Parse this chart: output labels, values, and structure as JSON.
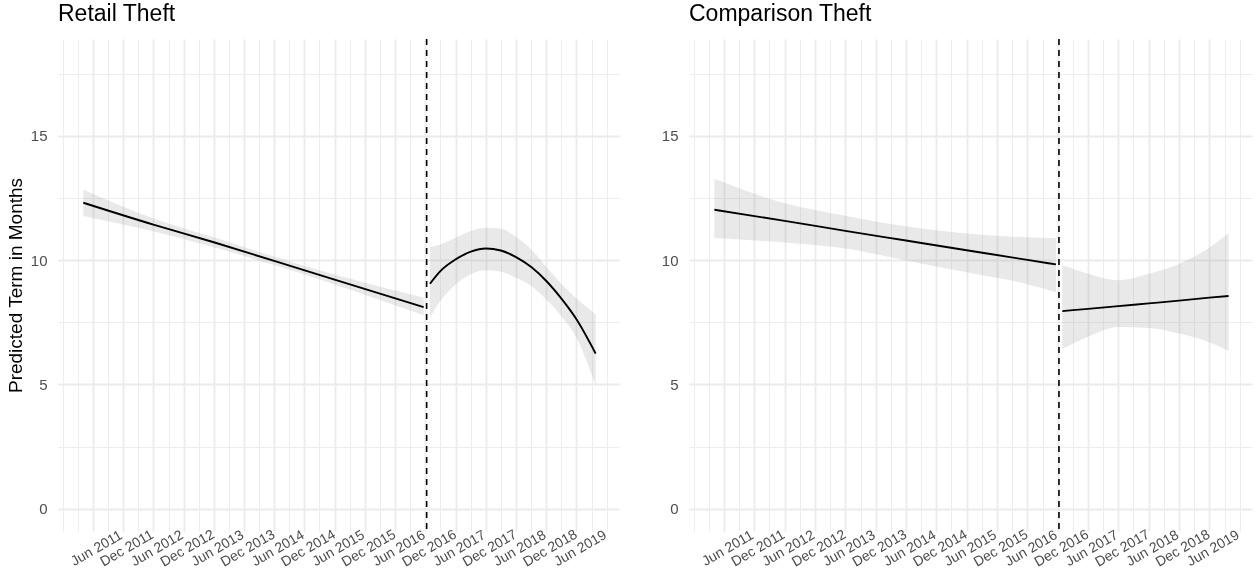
{
  "chart_data": [
    {
      "type": "line",
      "title": "Retail Theft",
      "ylabel": "Predicted Term in Months",
      "series": [
        {
          "color": "#000000",
          "x": [
            "2011-04-05",
            "2012-06-01",
            "2013-06-01",
            "2014-06-01",
            "2015-06-01",
            "2016-11-20"
          ],
          "values": [
            12.31,
            11.43,
            10.72,
            9.97,
            9.22,
            8.11
          ],
          "lower": [
            11.78,
            11.16,
            10.52,
            9.8,
            9.02,
            7.78
          ],
          "upper": [
            12.83,
            11.68,
            10.92,
            10.14,
            9.42,
            8.49
          ]
        },
        {
          "color": "#000000",
          "x": [
            "2016-12-28",
            "2017-03-01",
            "2017-06-01",
            "2017-09-01",
            "2017-12-01",
            "2018-03-01",
            "2018-06-01",
            "2018-09-01",
            "2018-12-01",
            "2019-03-01",
            "2019-06-01",
            "2019-09-25"
          ],
          "values": [
            9.05,
            9.56,
            10.03,
            10.34,
            10.47,
            10.39,
            10.12,
            9.72,
            9.16,
            8.46,
            7.62,
            6.24
          ],
          "lower": [
            7.71,
            8.36,
            9.02,
            9.43,
            9.59,
            9.53,
            9.29,
            8.96,
            8.42,
            7.75,
            6.88,
            4.96
          ],
          "upper": [
            10.53,
            10.63,
            10.9,
            11.17,
            11.3,
            11.27,
            10.93,
            10.43,
            9.72,
            9.05,
            8.46,
            7.83
          ]
        }
      ],
      "xlim": [
        "2010-11-03",
        "2020-02-13"
      ],
      "xticks": [
        {
          "value": "2010-12",
          "label": null
        },
        {
          "value": "2011-03",
          "label": null
        },
        {
          "value": "2011-06",
          "label": "Jun 2011"
        },
        {
          "value": "2011-09",
          "label": null
        },
        {
          "value": "2011-12",
          "label": "Dec 2011"
        },
        {
          "value": "2012-03",
          "label": null
        },
        {
          "value": "2012-06",
          "label": "Jun 2012"
        },
        {
          "value": "2012-09",
          "label": null
        },
        {
          "value": "2012-12",
          "label": "Dec 2012"
        },
        {
          "value": "2013-03",
          "label": null
        },
        {
          "value": "2013-06",
          "label": "Jun 2013"
        },
        {
          "value": "2013-09",
          "label": null
        },
        {
          "value": "2013-12",
          "label": "Dec 2013"
        },
        {
          "value": "2014-03",
          "label": null
        },
        {
          "value": "2014-06",
          "label": "Jun 2014"
        },
        {
          "value": "2014-09",
          "label": null
        },
        {
          "value": "2014-12",
          "label": "Dec 2014"
        },
        {
          "value": "2015-03",
          "label": null
        },
        {
          "value": "2015-06",
          "label": "Jun 2015"
        },
        {
          "value": "2015-09",
          "label": null
        },
        {
          "value": "2015-12",
          "label": "Dec 2015"
        },
        {
          "value": "2016-03",
          "label": null
        },
        {
          "value": "2016-06",
          "label": "Jun 2016"
        },
        {
          "value": "2016-09",
          "label": null
        },
        {
          "value": "2016-12",
          "label": "Dec 2016"
        },
        {
          "value": "2017-03",
          "label": null
        },
        {
          "value": "2017-06",
          "label": "Jun 2017"
        },
        {
          "value": "2017-09",
          "label": null
        },
        {
          "value": "2017-12",
          "label": "Dec 2017"
        },
        {
          "value": "2018-03",
          "label": null
        },
        {
          "value": "2018-06",
          "label": "Jun 2018"
        },
        {
          "value": "2018-09",
          "label": null
        },
        {
          "value": "2018-12",
          "label": "Dec 2018"
        },
        {
          "value": "2019-03",
          "label": null
        },
        {
          "value": "2019-06",
          "label": "Jun 2019"
        },
        {
          "value": "2019-09",
          "label": null
        },
        {
          "value": "2019-12",
          "label": null
        }
      ],
      "ylim": [
        -0.9,
        18.9
      ],
      "yticks": [
        0,
        {
          "value": 2.5,
          "label": null
        },
        5,
        {
          "value": 7.5,
          "label": null
        },
        10,
        {
          "value": 12.5,
          "label": null
        },
        15,
        {
          "value": 17.5,
          "label": null
        }
      ],
      "ref_lines": [
        {
          "axis": "x",
          "value": "2016-12-08",
          "color": "#000000",
          "line_style": "dashed"
        }
      ],
      "grid": true
    },
    {
      "type": "line",
      "title": "Comparison Theft",
      "series": [
        {
          "color": "#000000",
          "x": [
            "2011-04-05",
            "2012-06-01",
            "2013-06-01",
            "2014-06-01",
            "2015-06-01",
            "2016-06-01",
            "2016-11-20"
          ],
          "values": [
            12.03,
            11.58,
            11.18,
            10.79,
            10.4,
            10.01,
            9.83
          ],
          "lower": [
            10.89,
            10.71,
            10.47,
            9.99,
            9.51,
            9.03,
            8.71
          ],
          "upper": [
            13.28,
            12.29,
            11.79,
            11.36,
            11.07,
            10.92,
            10.89
          ]
        },
        {
          "color": "#000000",
          "x": [
            "2016-12-28",
            "2017-06-01",
            "2017-12-01",
            "2018-06-01",
            "2018-12-01",
            "2019-06-01",
            "2019-09-25"
          ],
          "values": [
            7.95,
            8.04,
            8.15,
            8.26,
            8.37,
            8.49,
            8.56
          ],
          "lower": [
            6.43,
            6.92,
            7.31,
            7.27,
            7.05,
            6.7,
            6.35
          ],
          "upper": [
            9.8,
            9.45,
            9.19,
            9.45,
            9.85,
            10.5,
            11.08
          ]
        }
      ],
      "xlim": [
        "2010-11-03",
        "2020-02-13"
      ],
      "xticks": [
        {
          "value": "2010-12",
          "label": null
        },
        {
          "value": "2011-03",
          "label": null
        },
        {
          "value": "2011-06",
          "label": "Jun 2011"
        },
        {
          "value": "2011-09",
          "label": null
        },
        {
          "value": "2011-12",
          "label": "Dec 2011"
        },
        {
          "value": "2012-03",
          "label": null
        },
        {
          "value": "2012-06",
          "label": "Jun 2012"
        },
        {
          "value": "2012-09",
          "label": null
        },
        {
          "value": "2012-12",
          "label": "Dec 2012"
        },
        {
          "value": "2013-03",
          "label": null
        },
        {
          "value": "2013-06",
          "label": "Jun 2013"
        },
        {
          "value": "2013-09",
          "label": null
        },
        {
          "value": "2013-12",
          "label": "Dec 2013"
        },
        {
          "value": "2014-03",
          "label": null
        },
        {
          "value": "2014-06",
          "label": "Jun 2014"
        },
        {
          "value": "2014-09",
          "label": null
        },
        {
          "value": "2014-12",
          "label": "Dec 2014"
        },
        {
          "value": "2015-03",
          "label": null
        },
        {
          "value": "2015-06",
          "label": "Jun 2015"
        },
        {
          "value": "2015-09",
          "label": null
        },
        {
          "value": "2015-12",
          "label": "Dec 2015"
        },
        {
          "value": "2016-03",
          "label": null
        },
        {
          "value": "2016-06",
          "label": "Jun 2016"
        },
        {
          "value": "2016-09",
          "label": null
        },
        {
          "value": "2016-12",
          "label": "Dec 2016"
        },
        {
          "value": "2017-03",
          "label": null
        },
        {
          "value": "2017-06",
          "label": "Jun 2017"
        },
        {
          "value": "2017-09",
          "label": null
        },
        {
          "value": "2017-12",
          "label": "Dec 2017"
        },
        {
          "value": "2018-03",
          "label": null
        },
        {
          "value": "2018-06",
          "label": "Jun 2018"
        },
        {
          "value": "2018-09",
          "label": null
        },
        {
          "value": "2018-12",
          "label": "Dec 2018"
        },
        {
          "value": "2019-03",
          "label": null
        },
        {
          "value": "2019-06",
          "label": "Jun 2019"
        },
        {
          "value": "2019-09",
          "label": null
        },
        {
          "value": "2019-12",
          "label": null
        }
      ],
      "ylim": [
        -0.9,
        18.9
      ],
      "yticks": [
        0,
        {
          "value": 2.5,
          "label": null
        },
        5,
        {
          "value": 7.5,
          "label": null
        },
        10,
        {
          "value": 12.5,
          "label": null
        },
        15,
        {
          "value": 17.5,
          "label": null
        }
      ],
      "ref_lines": [
        {
          "axis": "x",
          "value": "2016-12-08",
          "color": "#000000",
          "line_style": "dashed"
        }
      ],
      "grid": true
    }
  ]
}
